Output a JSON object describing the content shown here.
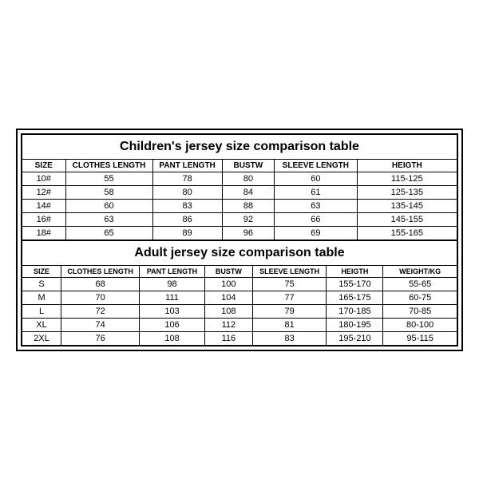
{
  "children_table": {
    "title": "Children's jersey size comparison table",
    "columns": [
      "SIZE",
      "CLOTHES LENGTH",
      "PANT LENGTH",
      "BUSTW",
      "SLEEVE LENGTH",
      "HEIGTH"
    ],
    "rows": [
      [
        "10#",
        "55",
        "78",
        "80",
        "60",
        "115-125"
      ],
      [
        "12#",
        "58",
        "80",
        "84",
        "61",
        "125-135"
      ],
      [
        "14#",
        "60",
        "83",
        "88",
        "63",
        "135-145"
      ],
      [
        "16#",
        "63",
        "86",
        "92",
        "66",
        "145-155"
      ],
      [
        "18#",
        "65",
        "89",
        "96",
        "69",
        "155-165"
      ]
    ]
  },
  "adult_table": {
    "title": "Adult jersey size comparison table",
    "columns": [
      "SIZE",
      "CLOTHES LENGTH",
      "PANT LENGTH",
      "BUSTW",
      "SLEEVE LENGTH",
      "HEIGTH",
      "WEIGHT/KG"
    ],
    "rows": [
      [
        "S",
        "68",
        "98",
        "100",
        "75",
        "155-170",
        "55-65"
      ],
      [
        "M",
        "70",
        "111",
        "104",
        "77",
        "165-175",
        "60-75"
      ],
      [
        "L",
        "72",
        "103",
        "108",
        "79",
        "170-185",
        "70-85"
      ],
      [
        "XL",
        "74",
        "106",
        "112",
        "81",
        "180-195",
        "80-100"
      ],
      [
        "2XL",
        "76",
        "108",
        "116",
        "83",
        "195-210",
        "95-115"
      ]
    ]
  }
}
